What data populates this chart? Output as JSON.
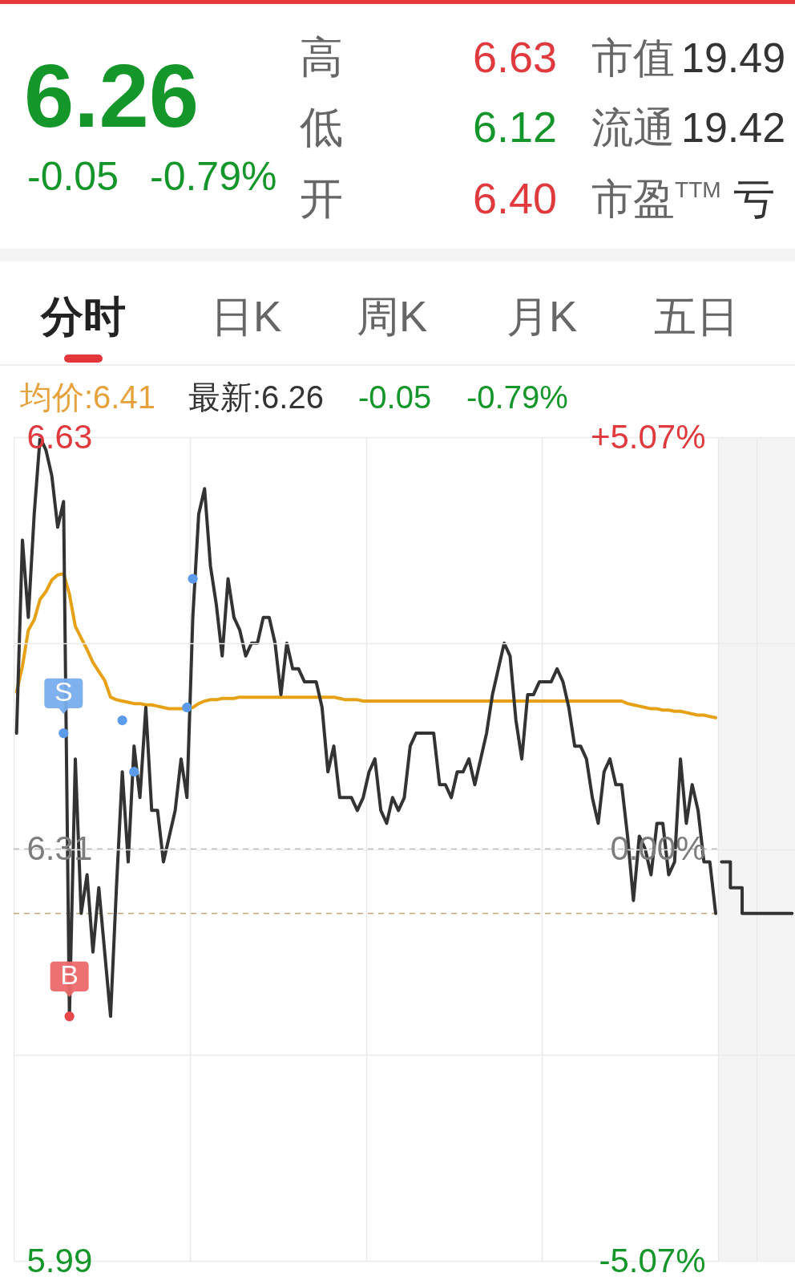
{
  "chart_data": {
    "type": "line",
    "annotations": [
      "6.26",
      "-0.05",
      "-0.79%",
      "高",
      "6.63",
      "低",
      "6.12",
      "开",
      "6.40",
      "市值",
      "19.49",
      "流通",
      "19.42",
      "市盈$^{TTM}$",
      "亏",
      "分时",
      "日K",
      "周K",
      "月K",
      "五日",
      "均价:6.41",
      "最新:6.26",
      "-0.05",
      "-0.79%"
    ],
    "categories": [
      null,
      null,
      null,
      null,
      null,
      null,
      null,
      null,
      null,
      null,
      null,
      null,
      null,
      null,
      null,
      null,
      null,
      null,
      null,
      null,
      null,
      null,
      null,
      null,
      null,
      null,
      null,
      null,
      null,
      null,
      null,
      null,
      null,
      null,
      null,
      null,
      null,
      null,
      null,
      null,
      null,
      null,
      null,
      null,
      null,
      null,
      null,
      null,
      null,
      null,
      null,
      null,
      null,
      null,
      null,
      null,
      null,
      null,
      null,
      null,
      null,
      null,
      null,
      null,
      null,
      null,
      null,
      null,
      null,
      null,
      null,
      null,
      null,
      null,
      null,
      null,
      null,
      null,
      null,
      null,
      null,
      null,
      null,
      null,
      null,
      null,
      null,
      null,
      null,
      null,
      null,
      null,
      null,
      null,
      null,
      null,
      null,
      null,
      null,
      null,
      null,
      null,
      null,
      null,
      null,
      null,
      null,
      null,
      null,
      null,
      null,
      null,
      null,
      null,
      null,
      null,
      null,
      null,
      null,
      null,
      null,
      null,
      null,
      null,
      null,
      null,
      null,
      null,
      null,
      null,
      null,
      null,
      null
    ],
    "series": [
      {
        "color": "#e6a117",
        "values": [
          6.432,
          6.452,
          6.48,
          6.488,
          6.504,
          6.51,
          6.519,
          6.523,
          6.524,
          6.508,
          6.483,
          6.474,
          6.465,
          6.455,
          6.448,
          6.441,
          6.428,
          6.426,
          6.425,
          6.424,
          6.423,
          6.423,
          6.422,
          6.422,
          6.421,
          6.42,
          6.419,
          6.419,
          6.419,
          6.419,
          6.42,
          6.423,
          6.425,
          6.426,
          6.426,
          6.427,
          6.427,
          6.427,
          6.428,
          6.428,
          6.428,
          6.428,
          6.428,
          6.428,
          6.428,
          6.428,
          6.428,
          6.428,
          6.428,
          6.428,
          6.428,
          6.428,
          6.428,
          6.428,
          6.428,
          6.427,
          6.426,
          6.426,
          6.426,
          6.425,
          6.425,
          6.425,
          6.425,
          6.425,
          6.425,
          6.425,
          6.425,
          6.425,
          6.425,
          6.425,
          6.425,
          6.425,
          6.425,
          6.425,
          6.425,
          6.425,
          6.425,
          6.425,
          6.425,
          6.425,
          6.425,
          6.425,
          6.425,
          6.425,
          6.425,
          6.425,
          6.425,
          6.425,
          6.425,
          6.425,
          6.425,
          6.425,
          6.425,
          6.425,
          6.425,
          6.425,
          6.425,
          6.425,
          6.425,
          6.425,
          6.425,
          6.425,
          6.425,
          6.425,
          6.423,
          6.422,
          6.421,
          6.42,
          6.419,
          6.419,
          6.418,
          6.418,
          6.417,
          6.417,
          6.416,
          6.415,
          6.414,
          6.414,
          6.413,
          6.412,
          null,
          null,
          null,
          null,
          null,
          null,
          null,
          null,
          null,
          null,
          null,
          null,
          null
        ]
      },
      {
        "color": "#333333",
        "values": [
          6.4,
          6.55,
          6.49,
          6.57,
          6.63,
          6.62,
          6.6,
          6.56,
          6.58,
          6.18,
          6.38,
          6.26,
          6.29,
          6.23,
          6.28,
          6.23,
          6.18,
          6.28,
          6.37,
          6.3,
          6.39,
          6.35,
          6.42,
          6.34,
          6.34,
          6.3,
          6.32,
          6.34,
          6.38,
          6.35,
          6.49,
          6.57,
          6.59,
          6.53,
          6.5,
          6.46,
          6.52,
          6.49,
          6.48,
          6.46,
          6.47,
          6.47,
          6.49,
          6.49,
          6.47,
          6.43,
          6.47,
          6.45,
          6.45,
          6.44,
          6.44,
          6.44,
          6.42,
          6.37,
          6.39,
          6.35,
          6.35,
          6.35,
          6.34,
          6.35,
          6.37,
          6.38,
          6.34,
          6.33,
          6.35,
          6.34,
          6.35,
          6.39,
          6.4,
          6.4,
          6.4,
          6.4,
          6.36,
          6.36,
          6.35,
          6.37,
          6.37,
          6.38,
          6.36,
          6.38,
          6.4,
          6.43,
          6.45,
          6.47,
          6.46,
          6.41,
          6.38,
          6.43,
          6.43,
          6.44,
          6.44,
          6.44,
          6.45,
          6.44,
          6.42,
          6.39,
          6.39,
          6.38,
          6.35,
          6.33,
          6.37,
          6.38,
          6.36,
          6.36,
          6.32,
          6.27,
          6.32,
          6.31,
          6.29,
          6.33,
          6.33,
          6.29,
          6.3,
          6.38,
          6.33,
          6.36,
          6.34,
          6.3,
          6.3,
          6.26,
          null,
          null,
          null,
          null,
          null,
          null,
          null,
          null,
          null,
          null,
          null,
          null,
          null
        ]
      },
      {
        "type": "step",
        "color": "#333333",
        "values": [
          null,
          null,
          null,
          null,
          null,
          null,
          null,
          null,
          null,
          null,
          null,
          null,
          null,
          null,
          null,
          null,
          null,
          null,
          null,
          null,
          null,
          null,
          null,
          null,
          null,
          null,
          null,
          null,
          null,
          null,
          null,
          null,
          null,
          null,
          null,
          null,
          null,
          null,
          null,
          null,
          null,
          null,
          null,
          null,
          null,
          null,
          null,
          null,
          null,
          null,
          null,
          null,
          null,
          null,
          null,
          null,
          null,
          null,
          null,
          null,
          null,
          null,
          null,
          null,
          null,
          null,
          null,
          null,
          null,
          null,
          null,
          null,
          null,
          null,
          null,
          null,
          null,
          null,
          null,
          null,
          null,
          null,
          null,
          null,
          null,
          null,
          null,
          null,
          null,
          null,
          null,
          null,
          null,
          null,
          null,
          null,
          null,
          null,
          null,
          null,
          null,
          null,
          null,
          null,
          null,
          null,
          null,
          null,
          null,
          null,
          null,
          null,
          null,
          null,
          null,
          null,
          null,
          null,
          null,
          null,
          6.3,
          6.3,
          6.28,
          6.28,
          6.26,
          6.26,
          6.26,
          6.26,
          6.26,
          6.26,
          6.26,
          6.26,
          6.26
        ]
      },
      {
        "type": "scatter",
        "marker": "circle",
        "color": "#5b9bea",
        "values": [
          null,
          null,
          null,
          null,
          null,
          null,
          null,
          null,
          6.4,
          null,
          null,
          null,
          null,
          null,
          null,
          null,
          null,
          null,
          6.41,
          null,
          6.37,
          null,
          null,
          null,
          null,
          null,
          null,
          null,
          null,
          6.42,
          6.52,
          null,
          null,
          null,
          null,
          null,
          null,
          null,
          null,
          null,
          null,
          null,
          null,
          null,
          null,
          null,
          null,
          null,
          null,
          null,
          null,
          null,
          null,
          null,
          null,
          null,
          null,
          null,
          null,
          null,
          null,
          null,
          null,
          null,
          null,
          null,
          null,
          null,
          null,
          null,
          null,
          null,
          null,
          null,
          null,
          null,
          null,
          null,
          null,
          null,
          null,
          null,
          null,
          null,
          null,
          null,
          null,
          null,
          null,
          null,
          null,
          null,
          null,
          null,
          null,
          null,
          null,
          null,
          null,
          null,
          null,
          null,
          null,
          null,
          null,
          null,
          null,
          null,
          null,
          null,
          null,
          null,
          null,
          null,
          null,
          null,
          null,
          null,
          null,
          null,
          null,
          null,
          null,
          null,
          null,
          null,
          null,
          null,
          null,
          null,
          null,
          null,
          null
        ],
        "value_labels": [
          null,
          null,
          null,
          null,
          null,
          null,
          null,
          null,
          "S",
          null,
          null,
          null,
          null,
          null,
          null,
          null,
          null,
          null,
          null,
          null,
          null,
          null,
          null,
          null,
          null,
          null,
          null,
          null,
          null,
          null,
          null,
          null,
          null,
          null,
          null,
          null,
          null,
          null,
          null,
          null,
          null,
          null,
          null,
          null,
          null,
          null,
          null,
          null,
          null,
          null,
          null,
          null,
          null,
          null,
          null,
          null,
          null,
          null,
          null,
          null,
          null,
          null,
          null,
          null,
          null,
          null,
          null,
          null,
          null,
          null,
          null,
          null,
          null,
          null,
          null,
          null,
          null,
          null,
          null,
          null,
          null,
          null,
          null,
          null,
          null,
          null,
          null,
          null,
          null,
          null,
          null,
          null,
          null,
          null,
          null,
          null,
          null,
          null,
          null,
          null,
          null,
          null,
          null,
          null,
          null,
          null,
          null,
          null,
          null,
          null,
          null,
          null,
          null,
          null,
          null,
          null,
          null,
          null,
          null,
          null,
          null,
          null,
          null,
          null,
          null,
          null,
          null,
          null,
          null,
          null,
          null,
          null,
          null
        ]
      },
      {
        "type": "scatter",
        "marker": "circle",
        "color": "#e8474c",
        "values": [
          null,
          null,
          null,
          null,
          null,
          null,
          null,
          null,
          null,
          6.18,
          null,
          null,
          null,
          null,
          null,
          null,
          null,
          null,
          null,
          null,
          null,
          null,
          null,
          null,
          null,
          null,
          null,
          null,
          null,
          null,
          null,
          null,
          null,
          null,
          null,
          null,
          null,
          null,
          null,
          null,
          null,
          null,
          null,
          null,
          null,
          null,
          null,
          null,
          null,
          null,
          null,
          null,
          null,
          null,
          null,
          null,
          null,
          null,
          null,
          null,
          null,
          null,
          null,
          null,
          null,
          null,
          null,
          null,
          null,
          null,
          null,
          null,
          null,
          null,
          null,
          null,
          null,
          null,
          null,
          null,
          null,
          null,
          null,
          null,
          null,
          null,
          null,
          null,
          null,
          null,
          null,
          null,
          null,
          null,
          null,
          null,
          null,
          null,
          null,
          null,
          null,
          null,
          null,
          null,
          null,
          null,
          null,
          null,
          null,
          null,
          null,
          null,
          null,
          null,
          null,
          null,
          null,
          null,
          null,
          null,
          null,
          null,
          null,
          null,
          null,
          null,
          null,
          null,
          null,
          null,
          null,
          null,
          null
        ],
        "value_labels": [
          null,
          null,
          null,
          null,
          null,
          null,
          null,
          null,
          null,
          "B",
          null,
          null,
          null,
          null,
          null,
          null,
          null,
          null,
          null,
          null,
          null,
          null,
          null,
          null,
          null,
          null,
          null,
          null,
          null,
          null,
          null,
          null,
          null,
          null,
          null,
          null,
          null,
          null,
          null,
          null,
          null,
          null,
          null,
          null,
          null,
          null,
          null,
          null,
          null,
          null,
          null,
          null,
          null,
          null,
          null,
          null,
          null,
          null,
          null,
          null,
          null,
          null,
          null,
          null,
          null,
          null,
          null,
          null,
          null,
          null,
          null,
          null,
          null,
          null,
          null,
          null,
          null,
          null,
          null,
          null,
          null,
          null,
          null,
          null,
          null,
          null,
          null,
          null,
          null,
          null,
          null,
          null,
          null,
          null,
          null,
          null,
          null,
          null,
          null,
          null,
          null,
          null,
          null,
          null,
          null,
          null,
          null,
          null,
          null,
          null,
          null,
          null,
          null,
          null,
          null,
          null,
          null,
          null,
          null,
          null,
          null,
          null,
          null,
          null,
          null,
          null,
          null,
          null,
          null,
          null,
          null,
          null,
          null
        ]
      }
    ],
    "ylim": [
      5.99,
      6.63
    ],
    "yticks": [
      5.99,
      {
        "value": 6.15,
        "label": null
      },
      6.31,
      {
        "value": 6.47,
        "label": null
      },
      6.63
    ],
    "y2lim": [
      -5.07,
      5.07
    ],
    "y2ticks": [
      {
        "value": -5.07,
        "label": "-5.07%"
      },
      {
        "value": 0,
        "label": "0.00%"
      },
      {
        "value": 5.07,
        "label": "+5.07%"
      }
    ],
    "ref_lines": [
      {
        "axis": "y2",
        "value": 0,
        "color": "#a6a6a6",
        "line_style": "dashed"
      },
      {
        "axis": "y",
        "value": 6.26,
        "color": "#c8a77c",
        "line_style": "dashed"
      }
    ],
    "grid": true
  }
}
